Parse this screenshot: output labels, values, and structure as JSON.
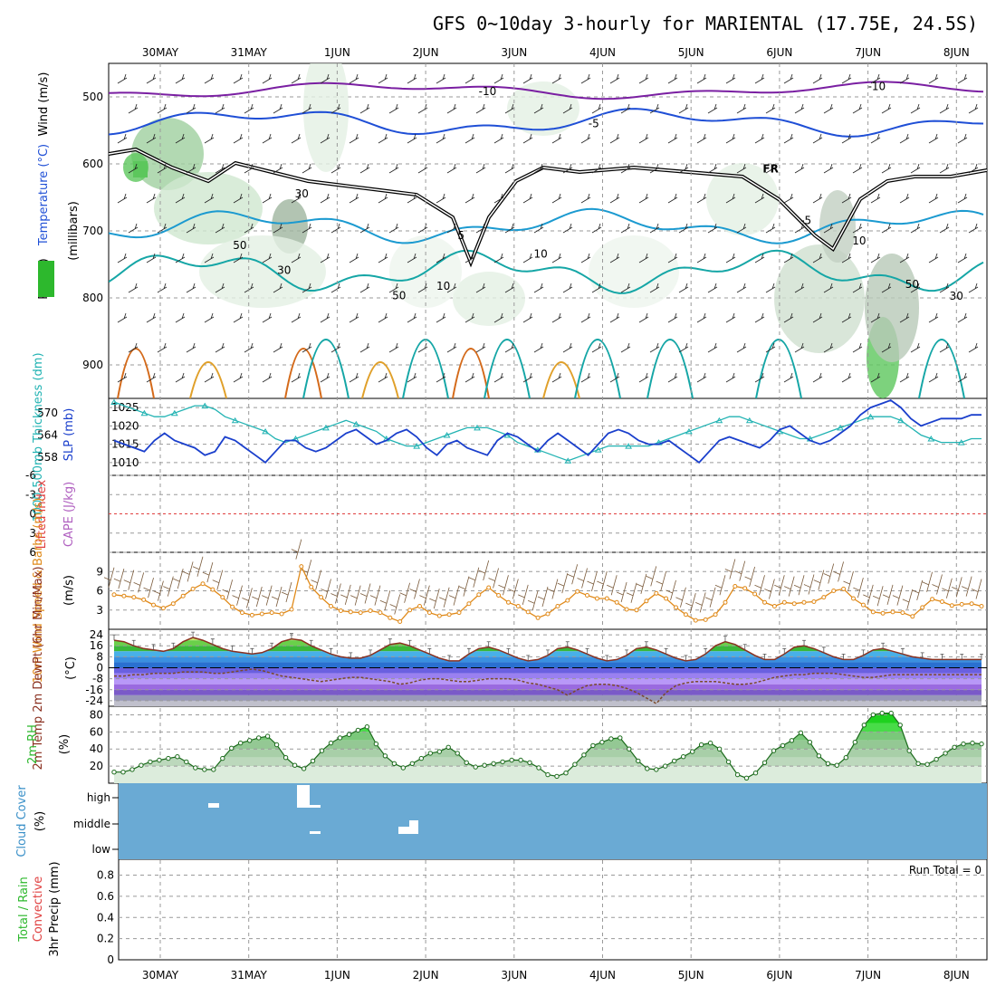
{
  "title": "GFS 0~10day 3-hourly for MARIENTAL (17.75E, 24.5S)",
  "colors": {
    "temp_cold": "#7a1fa2",
    "temp_mid": "#1f4fd6",
    "temp_warm": "#22b3b3",
    "temp_hot": "#e08a1a",
    "freezing": "#000000",
    "rh": "#2db82d",
    "slp": "#1a3fcc",
    "thickness": "#22b3b3",
    "wind_speed": "#e08a1a",
    "temp2m": "#8a3020",
    "cloud": "#6aaad4"
  },
  "chart_data": [
    {
      "type": "heatmap",
      "panel": "upper-air",
      "days": [
        "30MAY",
        "31MAY",
        "1JUN",
        "2JUN",
        "3JUN",
        "4JUN",
        "5JUN",
        "6JUN",
        "7JUN",
        "8JUN"
      ],
      "ylabel_wind": "Wind (m/s)",
      "ylabel_temp": "Temperature (°C)",
      "ylabel_rh": "RH (%)",
      "ylabel_unit": "(millibars)",
      "yticks": [
        500,
        600,
        700,
        800,
        900
      ],
      "ylim": [
        950,
        450
      ],
      "contour_labels": [
        {
          "text": "-10",
          "day": 3.7,
          "p": 497
        },
        {
          "text": "-10",
          "day": 8.1,
          "p": 490
        },
        {
          "text": "-5",
          "day": 4.9,
          "p": 545
        },
        {
          "text": "FR",
          "day": 6.9,
          "p": 613
        },
        {
          "text": "-5",
          "day": 7.3,
          "p": 690
        },
        {
          "text": "5",
          "day": 3.4,
          "p": 712
        },
        {
          "text": "10",
          "day": 3.2,
          "p": 788
        }
      ],
      "rh_labels": [
        {
          "text": "30",
          "day": 1.6,
          "p": 650
        },
        {
          "text": "50",
          "day": 0.9,
          "p": 727
        },
        {
          "text": "30",
          "day": 1.4,
          "p": 764
        },
        {
          "text": "50",
          "day": 2.7,
          "p": 802
        },
        {
          "text": "10",
          "day": 4.3,
          "p": 740
        },
        {
          "text": "10",
          "day": 7.9,
          "p": 720
        },
        {
          "text": "50",
          "day": 8.5,
          "p": 785
        },
        {
          "text": "30",
          "day": 9.0,
          "p": 803
        }
      ]
    },
    {
      "type": "line",
      "panel": "slp-thickness",
      "ylabel_left": "1000-500mb Thickness (dm)",
      "ylabel_right": "SLP (mb)",
      "left_ticks": [
        558,
        564,
        570
      ],
      "right_ticks": [
        1010,
        1015,
        1020,
        1025
      ],
      "series": [
        {
          "name": "SLP (mb)",
          "values": [
            1016,
            1015,
            1014,
            1013,
            1016,
            1018,
            1016,
            1015,
            1014,
            1012,
            1013,
            1017,
            1016,
            1014,
            1012,
            1010,
            1013,
            1016,
            1016,
            1014,
            1013,
            1014,
            1016,
            1018,
            1019,
            1017,
            1015,
            1016,
            1018,
            1019,
            1017,
            1014,
            1012,
            1015,
            1016,
            1014,
            1013,
            1012,
            1016,
            1018,
            1017,
            1015,
            1013,
            1016,
            1018,
            1016,
            1014,
            1012,
            1015,
            1018,
            1019,
            1018,
            1016,
            1015,
            1015,
            1016,
            1014,
            1012,
            1010,
            1013,
            1016,
            1017,
            1016,
            1015,
            1014,
            1016,
            1019,
            1020,
            1018,
            1016,
            1015,
            1016,
            1018,
            1020,
            1023,
            1025,
            1026,
            1027,
            1025,
            1022,
            1020,
            1021,
            1022,
            1022,
            1022,
            1023,
            1023
          ]
        },
        {
          "name": "1000-500mb Thickness (dm)",
          "values": [
            573,
            572,
            571,
            570,
            569,
            569,
            570,
            571,
            572,
            572,
            571,
            569,
            568,
            567,
            566,
            565,
            563,
            562,
            563,
            564,
            565,
            566,
            567,
            568,
            567,
            566,
            565,
            563,
            562,
            561,
            561,
            562,
            563,
            564,
            565,
            566,
            566,
            566,
            565,
            564,
            562,
            561,
            560,
            559,
            558,
            557,
            558,
            559,
            560,
            561,
            561,
            561,
            561,
            561,
            562,
            563,
            564,
            565,
            566,
            567,
            568,
            569,
            569,
            568,
            567,
            566,
            565,
            564,
            563,
            563,
            564,
            565,
            566,
            567,
            568,
            569,
            569,
            569,
            568,
            566,
            564,
            563,
            562,
            562,
            562,
            563,
            563
          ]
        }
      ]
    },
    {
      "type": "line",
      "panel": "cape-li",
      "ylabel_li": "Lifted Index",
      "ylabel_cape": "CAPE (J/kg)",
      "yticks": [
        "-6",
        "-3",
        "0",
        "3",
        "6"
      ],
      "ylim": [
        -6,
        6
      ]
    },
    {
      "type": "line",
      "panel": "wind10m",
      "ylabel": "10m Wind Speed & Barbs (m/s)",
      "ylabel_unit": "(m/s)",
      "yticks": [
        3,
        6,
        9
      ],
      "ylim": [
        0,
        12
      ],
      "series": [
        {
          "name": "10m Wind Speed",
          "values": [
            5.4,
            5.2,
            5.0,
            4.6,
            3.8,
            3.3,
            4.0,
            5.2,
            6.3,
            7.1,
            6.2,
            5.0,
            3.5,
            2.6,
            2.2,
            2.4,
            2.6,
            2.4,
            3.1,
            9.8,
            6.6,
            5.0,
            3.6,
            2.9,
            2.7,
            2.6,
            2.9,
            2.6,
            1.8,
            1.2,
            3.0,
            3.6,
            2.6,
            2.1,
            2.3,
            2.6,
            4.0,
            5.4,
            6.5,
            5.3,
            4.2,
            3.6,
            2.7,
            1.8,
            2.4,
            3.6,
            4.5,
            5.9,
            5.3,
            4.8,
            4.8,
            4.2,
            3.1,
            3.0,
            4.4,
            5.6,
            4.8,
            3.4,
            2.3,
            1.4,
            1.5,
            2.3,
            4.2,
            6.7,
            6.4,
            5.5,
            4.2,
            3.6,
            4.2,
            4.0,
            4.2,
            4.3,
            5.0,
            6.0,
            6.3,
            4.8,
            3.8,
            2.7,
            2.5,
            2.7,
            2.6,
            2.0,
            3.4,
            4.7,
            4.3,
            3.7,
            3.9,
            4.0,
            3.6
          ]
        }
      ]
    },
    {
      "type": "area",
      "panel": "temp2m",
      "ylabel": "2m Temp 2m DewPt (6hr Min/Max)",
      "ylabel_unit": "(°C)",
      "yticks": [
        24,
        16,
        8,
        0,
        -8,
        -16,
        -24
      ],
      "ylim": [
        -28,
        28
      ],
      "series": [
        {
          "name": "2m Temp",
          "values": [
            20,
            19,
            16,
            14,
            13,
            12,
            14,
            19,
            22,
            20,
            17,
            14,
            12,
            11,
            10,
            11,
            14,
            19,
            21,
            20,
            16,
            13,
            10,
            8,
            7,
            7,
            9,
            13,
            17,
            18,
            16,
            13,
            10,
            7,
            5,
            5,
            10,
            14,
            15,
            13,
            10,
            7,
            5,
            6,
            9,
            14,
            15,
            13,
            10,
            7,
            5,
            6,
            9,
            14,
            15,
            13,
            10,
            7,
            5,
            6,
            10,
            16,
            19,
            17,
            13,
            9,
            6,
            6,
            10,
            15,
            16,
            14,
            11,
            8,
            6,
            6,
            9,
            13,
            14,
            12,
            10,
            8,
            7,
            6,
            6,
            6,
            6,
            6,
            6
          ]
        },
        {
          "name": "2m DewPt",
          "values": [
            -6,
            -6,
            -5,
            -5,
            -4,
            -4,
            -4,
            -3,
            -3,
            -3,
            -4,
            -4,
            -3,
            -2,
            -1,
            -2,
            -4,
            -6,
            -7,
            -8,
            -9,
            -10,
            -9,
            -8,
            -7,
            -7,
            -8,
            -9,
            -10,
            -12,
            -11,
            -9,
            -8,
            -8,
            -9,
            -10,
            -10,
            -9,
            -8,
            -8,
            -8,
            -9,
            -11,
            -12,
            -14,
            -16,
            -20,
            -16,
            -13,
            -12,
            -12,
            -13,
            -15,
            -18,
            -22,
            -26,
            -18,
            -13,
            -11,
            -10,
            -10,
            -10,
            -11,
            -12,
            -12,
            -11,
            -9,
            -7,
            -6,
            -5,
            -5,
            -4,
            -4,
            -4,
            -5,
            -6,
            -7,
            -7,
            -6,
            -5,
            -5,
            -5,
            -5,
            -5,
            -5,
            -5,
            -5,
            -5,
            -5
          ]
        }
      ]
    },
    {
      "type": "area",
      "panel": "rh2m",
      "ylabel": "2m RH",
      "ylabel_unit": "(%)",
      "yticks": [
        20,
        40,
        60,
        80
      ],
      "ylim": [
        0,
        90
      ],
      "series": [
        {
          "name": "2m RH",
          "values": [
            13,
            13,
            16,
            21,
            25,
            27,
            29,
            31,
            25,
            18,
            16,
            16,
            29,
            41,
            47,
            50,
            53,
            55,
            45,
            30,
            21,
            17,
            26,
            38,
            47,
            53,
            57,
            62,
            66,
            46,
            32,
            23,
            18,
            23,
            29,
            35,
            37,
            42,
            35,
            24,
            19,
            21,
            23,
            25,
            27,
            27,
            24,
            18,
            10,
            8,
            12,
            22,
            33,
            44,
            48,
            52,
            53,
            40,
            26,
            17,
            16,
            20,
            26,
            31,
            37,
            45,
            47,
            40,
            25,
            10,
            6,
            12,
            24,
            38,
            44,
            50,
            59,
            48,
            32,
            23,
            21,
            30,
            48,
            68,
            80,
            82,
            82,
            68,
            38,
            23,
            22,
            28,
            35,
            42,
            46,
            47,
            46
          ]
        }
      ]
    },
    {
      "type": "heatmap",
      "panel": "cloud",
      "ylabel": "Cloud Cover",
      "ylabel_unit": "(%)",
      "levels": [
        "high",
        "middle",
        "low"
      ]
    },
    {
      "type": "bar",
      "panel": "precip",
      "ylabel_left1": "Total / Rain",
      "ylabel_left2": "Convective",
      "ylabel": "3hr Precip (mm)",
      "yticks": [
        "0",
        "0.2",
        "0.4",
        "0.6",
        "0.8"
      ],
      "ylim": [
        0,
        0.95
      ],
      "run_total": "Run Total = 0"
    }
  ]
}
